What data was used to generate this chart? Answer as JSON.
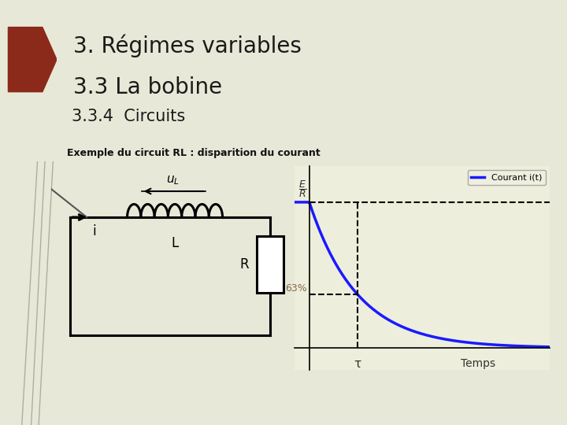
{
  "bg_color": "#e8e8d8",
  "title_line1": "3. Régimes variables",
  "title_line2": "3.3 La bobine",
  "subtitle": "3.3.4  Circuits",
  "example_label": "Exemple du circuit RL : disparition du courant",
  "pentagon_color": "#8b2a1a",
  "circuit_color": "#000000",
  "curve_color": "#1a1aff",
  "dashed_color": "#000000",
  "legend_label": "Courant i(t)",
  "tau_label": "τ",
  "temps_label": "Temps",
  "pct_label": "63%",
  "graph_bg": "#eeeedd",
  "title_fontsize": 20,
  "subtitle_fontsize": 15,
  "example_fontsize": 9
}
